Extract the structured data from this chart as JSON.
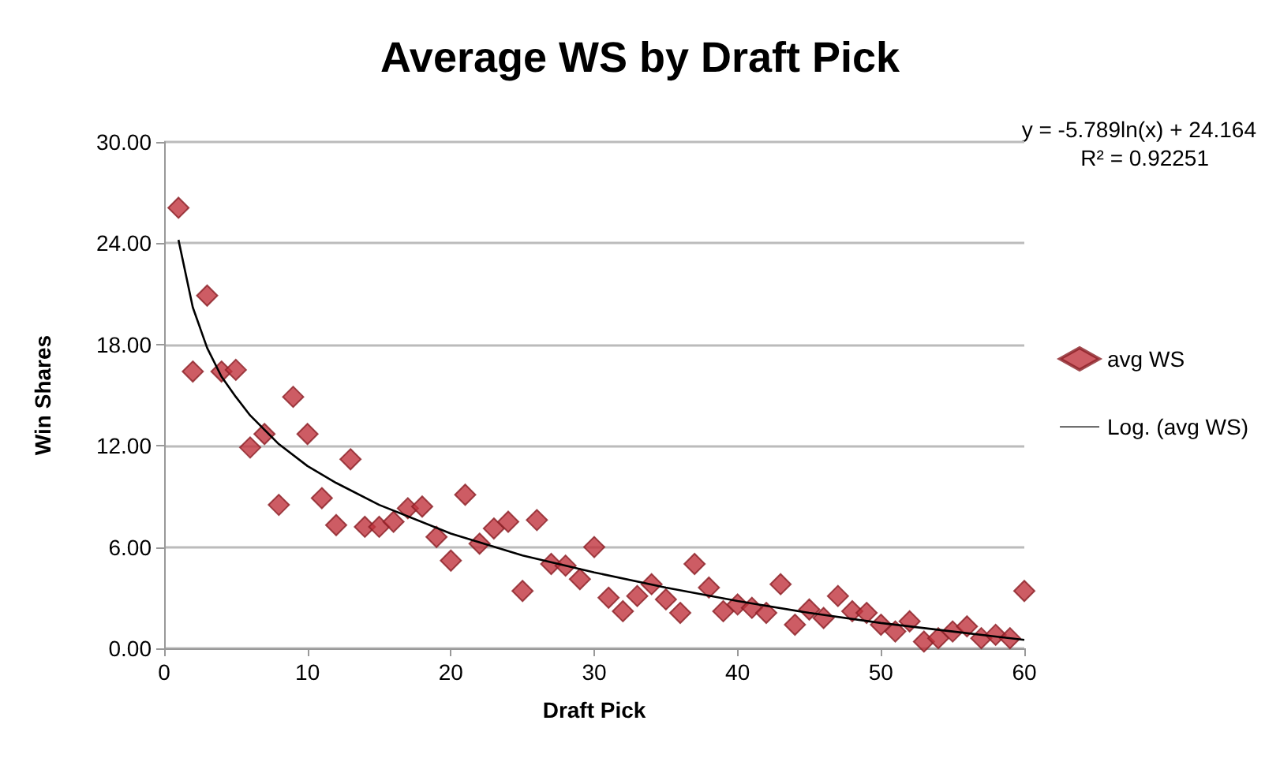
{
  "chart_data": {
    "type": "scatter",
    "title": "Average WS by Draft Pick",
    "xlabel": "Draft Pick",
    "ylabel": "Win Shares",
    "annotations": [
      "y = -5.789ln(x) + 24.164",
      "R² = 0.92251"
    ],
    "xlim": [
      0,
      60
    ],
    "xticks": [
      0,
      10,
      20,
      30,
      40,
      50,
      60
    ],
    "ylim": [
      0,
      30
    ],
    "yticks": [
      {
        "value": 0,
        "label": "0.00"
      },
      {
        "value": 6,
        "label": "6.00"
      },
      {
        "value": 12,
        "label": "12.00"
      },
      {
        "value": 18,
        "label": "18.00"
      },
      {
        "value": 24,
        "label": "24.00"
      },
      {
        "value": 30,
        "label": "30.00"
      }
    ],
    "grid": "y",
    "legend": "right",
    "series": [
      {
        "name": "avg WS",
        "marker": "diamond",
        "color": "#c0333d",
        "x": [
          1,
          2,
          3,
          4,
          5,
          6,
          7,
          8,
          9,
          10,
          11,
          12,
          13,
          14,
          15,
          16,
          17,
          18,
          19,
          20,
          21,
          22,
          23,
          24,
          25,
          26,
          27,
          28,
          29,
          30,
          31,
          32,
          33,
          34,
          35,
          36,
          37,
          38,
          39,
          40,
          41,
          42,
          43,
          44,
          45,
          46,
          47,
          48,
          49,
          50,
          51,
          52,
          53,
          54,
          55,
          56,
          57,
          58,
          59,
          60
        ],
        "values": [
          26.1,
          16.4,
          20.9,
          16.4,
          16.5,
          11.9,
          12.7,
          8.5,
          14.9,
          12.7,
          8.9,
          7.3,
          11.2,
          7.2,
          7.2,
          7.5,
          8.3,
          8.4,
          6.6,
          5.2,
          9.1,
          6.2,
          7.1,
          7.5,
          3.4,
          7.6,
          5.0,
          4.9,
          4.1,
          6.0,
          3.0,
          2.2,
          3.1,
          3.8,
          2.9,
          2.1,
          5.0,
          3.6,
          2.2,
          2.6,
          2.4,
          2.1,
          3.8,
          1.4,
          2.3,
          1.8,
          3.1,
          2.2,
          2.1,
          1.4,
          1.0,
          1.6,
          0.4,
          0.6,
          1.0,
          1.3,
          0.6,
          0.8,
          0.6,
          3.4
        ]
      },
      {
        "name": "Log. (avg WS)",
        "type": "line",
        "marker": "none",
        "line_style": "solid",
        "color": "#000000",
        "x": [
          1,
          2,
          3,
          4,
          5,
          6,
          8,
          10,
          12,
          15,
          20,
          25,
          30,
          35,
          40,
          45,
          50,
          55,
          60
        ],
        "values": [
          24.2,
          20.2,
          17.8,
          16.1,
          14.9,
          13.8,
          12.1,
          10.8,
          9.8,
          8.5,
          6.8,
          5.5,
          4.5,
          3.6,
          2.8,
          2.1,
          1.5,
          1.0,
          0.5
        ]
      }
    ]
  }
}
